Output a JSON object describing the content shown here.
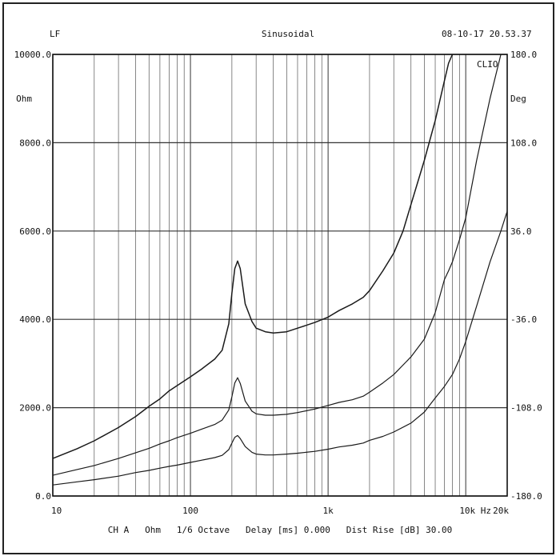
{
  "header": {
    "left": "LF",
    "center": "Sinusoidal",
    "right": "08-10-17 20.53.37"
  },
  "footer": {
    "text": "CH A   Ohm   1/6 Octave   Delay [ms] 0.000   Dist Rise [dB] 30.00"
  },
  "chart_data": {
    "type": "line",
    "title": "Sinusoidal",
    "xscale": "log",
    "xlim": [
      10,
      20000
    ],
    "ylim": [
      0,
      10000
    ],
    "y2lim": [
      -180,
      180
    ],
    "ylabel": "Ohm",
    "y2label": "Deg",
    "brand": "CLIO",
    "grid": true,
    "x_tick_labels": [
      {
        "x": 10,
        "label": "10"
      },
      {
        "x": 100,
        "label": "100"
      },
      {
        "x": 1000,
        "label": "1k"
      },
      {
        "x": 10000,
        "label": "10k Hz"
      },
      {
        "x": 20000,
        "label": "20k"
      }
    ],
    "y_tick_labels": [
      "0.0",
      "2000.0",
      "4000.0",
      "6000.0",
      "8000.0",
      "10000.0"
    ],
    "y2_tick_labels": [
      "-180.0",
      "-108.0",
      "-36.0",
      "36.0",
      "108.0",
      "180.0"
    ],
    "series": [
      {
        "x": [
          10,
          15,
          20,
          30,
          40,
          50,
          60,
          70,
          80,
          100,
          120,
          150,
          170,
          190,
          200,
          210,
          220,
          230,
          250,
          280,
          300,
          350,
          400,
          500,
          600,
          800,
          1000,
          1200,
          1500,
          1800,
          2000,
          2500,
          3000,
          3500,
          4000,
          5000,
          6000,
          7000,
          7500,
          8000
        ],
        "y": [
          850,
          1070,
          1250,
          1550,
          1800,
          2030,
          2200,
          2380,
          2500,
          2700,
          2870,
          3100,
          3300,
          3900,
          4600,
          5150,
          5320,
          5150,
          4350,
          3950,
          3800,
          3720,
          3690,
          3720,
          3800,
          3930,
          4050,
          4200,
          4350,
          4500,
          4650,
          5100,
          5500,
          6000,
          6600,
          7600,
          8500,
          9400,
          9800,
          10000
        ]
      },
      {
        "x": [
          10,
          15,
          20,
          30,
          40,
          50,
          60,
          70,
          80,
          100,
          120,
          150,
          170,
          190,
          200,
          210,
          220,
          230,
          250,
          280,
          300,
          350,
          400,
          500,
          600,
          800,
          1000,
          1200,
          1500,
          1800,
          2000,
          2500,
          3000,
          4000,
          5000,
          6000,
          7000,
          7500,
          8000,
          9000,
          10000,
          12000,
          15000,
          18000
        ],
        "y": [
          470,
          600,
          690,
          850,
          980,
          1080,
          1180,
          1250,
          1320,
          1420,
          1510,
          1620,
          1720,
          1950,
          2250,
          2560,
          2680,
          2550,
          2150,
          1920,
          1860,
          1830,
          1830,
          1850,
          1890,
          1970,
          2050,
          2120,
          2180,
          2260,
          2350,
          2560,
          2750,
          3150,
          3550,
          4150,
          4900,
          5100,
          5300,
          5800,
          6300,
          7600,
          9000,
          10000
        ]
      },
      {
        "x": [
          10,
          15,
          20,
          30,
          40,
          50,
          60,
          70,
          80,
          100,
          120,
          150,
          170,
          190,
          200,
          210,
          220,
          230,
          250,
          280,
          300,
          350,
          400,
          500,
          600,
          800,
          1000,
          1200,
          1500,
          1800,
          2000,
          2500,
          3000,
          4000,
          5000,
          6000,
          7000,
          8000,
          9000,
          10000,
          12000,
          15000,
          18000,
          20000
        ],
        "y": [
          250,
          320,
          370,
          450,
          530,
          580,
          630,
          670,
          700,
          760,
          810,
          870,
          920,
          1050,
          1200,
          1330,
          1370,
          1300,
          1120,
          990,
          950,
          930,
          930,
          950,
          970,
          1010,
          1060,
          1110,
          1150,
          1200,
          1260,
          1350,
          1450,
          1650,
          1900,
          2220,
          2480,
          2750,
          3100,
          3500,
          4300,
          5300,
          6000,
          6450
        ]
      }
    ]
  }
}
